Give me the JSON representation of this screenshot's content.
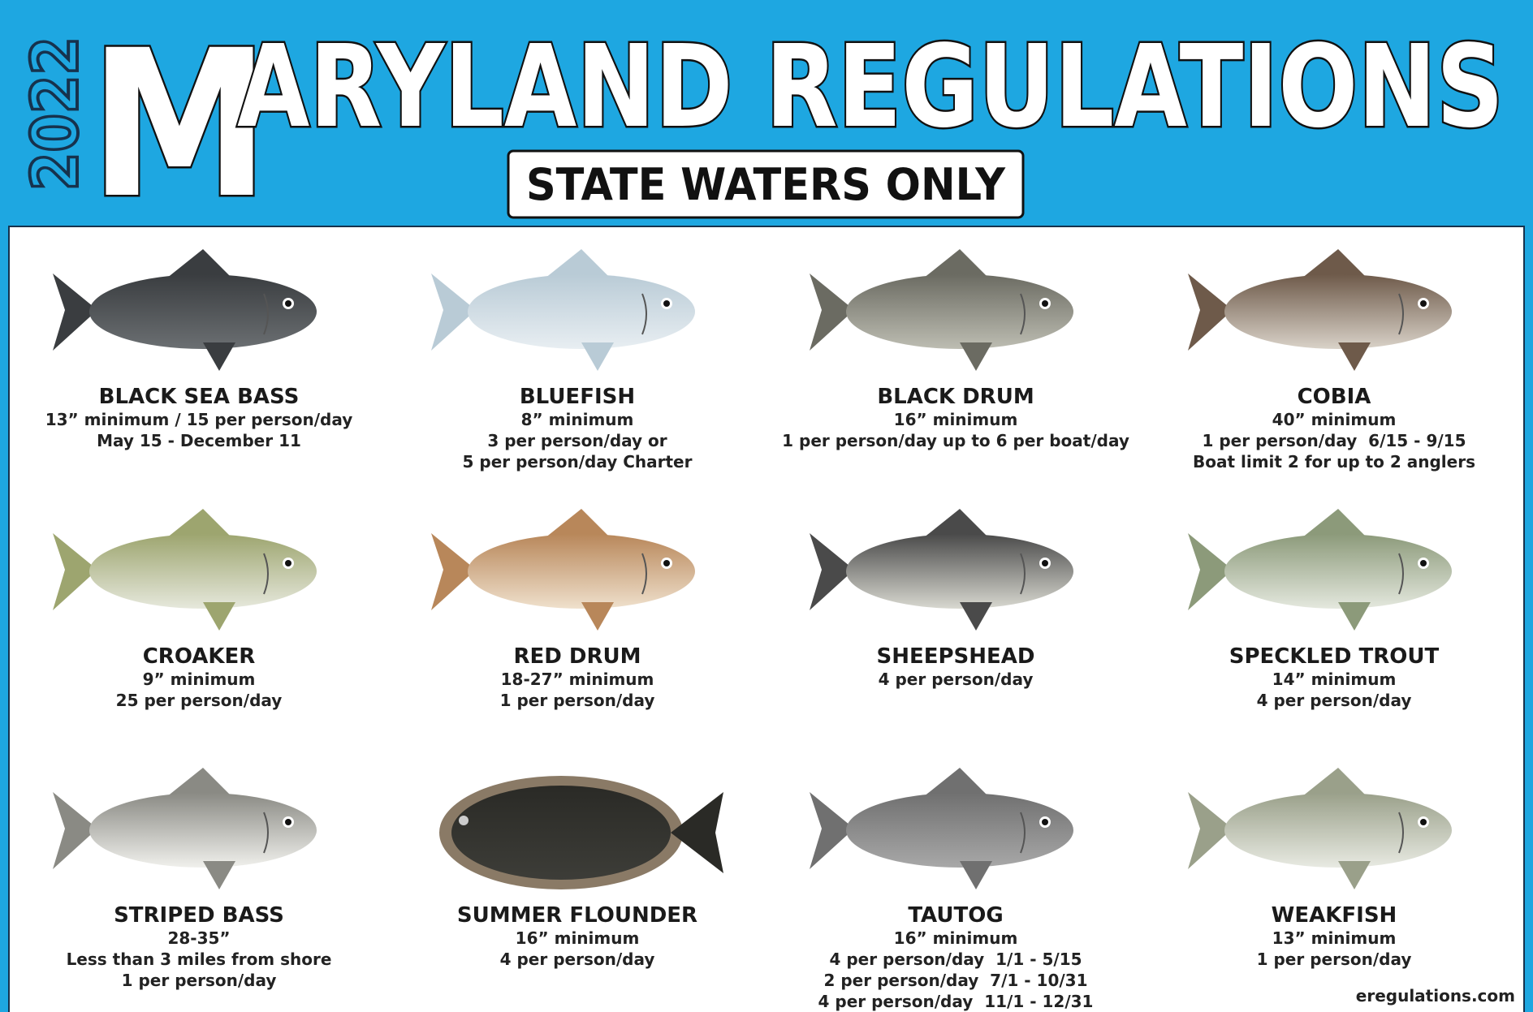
{
  "header": {
    "year": "2022",
    "title_first_letter": "M",
    "title_rest": "ARYLAND REGULATIONS",
    "subtitle": "STATE WATERS ONLY"
  },
  "species": [
    {
      "name": "BLACK SEA BASS",
      "rules": [
        "13” minimum / 15 per person/day",
        "May 15 - December 11"
      ]
    },
    {
      "name": "BLUEFISH",
      "rules": [
        "8” minimum",
        "3 per person/day or",
        "5 per person/day Charter"
      ]
    },
    {
      "name": "BLACK DRUM",
      "rules": [
        "16” minimum",
        "1 per person/day up to 6 per boat/day"
      ]
    },
    {
      "name": "COBIA",
      "rules": [
        "40” minimum",
        "1 per person/day  6/15 - 9/15",
        "Boat limit 2 for up to 2 anglers"
      ]
    },
    {
      "name": "CROAKER",
      "rules": [
        "9” minimum",
        "25 per person/day"
      ]
    },
    {
      "name": "RED DRUM",
      "rules": [
        "18-27” minimum",
        "1 per person/day"
      ]
    },
    {
      "name": "SHEEPSHEAD",
      "rules": [
        "4 per person/day"
      ]
    },
    {
      "name": "SPECKLED TROUT",
      "rules": [
        "14” minimum",
        "4 per person/day"
      ]
    },
    {
      "name": "STRIPED BASS",
      "rules": [
        "28-35”",
        "Less than 3 miles from shore",
        "1 per person/day"
      ]
    },
    {
      "name": "SUMMER FLOUNDER",
      "rules": [
        "16” minimum",
        "4 per person/day"
      ]
    },
    {
      "name": "TAUTOG",
      "rules": [
        "16” minimum",
        "4 per person/day  1/1 - 5/15",
        "2 per person/day  7/1 - 10/31",
        "4 per person/day  11/1 - 12/31"
      ]
    },
    {
      "name": "WEAKFISH",
      "rules": [
        "13” minimum",
        "1 per person/day"
      ]
    }
  ],
  "footer": "eregulations.com"
}
